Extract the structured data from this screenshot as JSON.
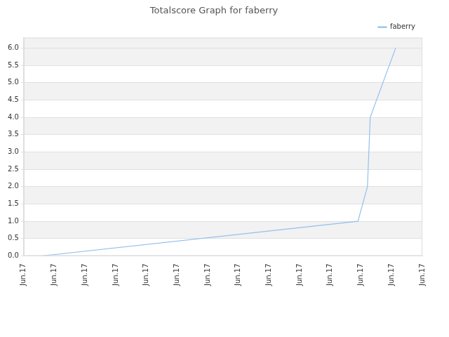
{
  "chart_data": {
    "type": "line",
    "title": "Totalscore Graph for faberry",
    "x": [
      0.59,
      10.9,
      11.21,
      11.3,
      12.13
    ],
    "series": [
      {
        "name": "faberry",
        "color": "#92c0ec",
        "values": [
          0,
          1.0,
          2.0,
          4.0,
          6.0
        ],
        "marker": "none",
        "line_style": "solid"
      }
    ],
    "xlim": [
      0,
      13
    ],
    "xticks": [
      {
        "value": 0,
        "label": "Jun.17"
      },
      {
        "value": 1,
        "label": "Jun.17"
      },
      {
        "value": 2,
        "label": "Jun.17"
      },
      {
        "value": 3,
        "label": "Jun.17"
      },
      {
        "value": 4,
        "label": "Jun.17"
      },
      {
        "value": 5,
        "label": "Jun.17"
      },
      {
        "value": 6,
        "label": "Jun.17"
      },
      {
        "value": 7,
        "label": "Jun.17"
      },
      {
        "value": 8,
        "label": "Jun.17"
      },
      {
        "value": 9,
        "label": "Jun.17"
      },
      {
        "value": 10,
        "label": "Jun.17"
      },
      {
        "value": 11,
        "label": "Jun.17"
      },
      {
        "value": 12,
        "label": "Jun.17"
      },
      {
        "value": 13,
        "label": "Jun.17"
      }
    ],
    "ylim": [
      0,
      6.3
    ],
    "yticks": [
      {
        "value": 0,
        "label": "0.0"
      },
      0.5,
      {
        "value": 1,
        "label": "1.0"
      },
      1.5,
      {
        "value": 2,
        "label": "2.0"
      },
      2.5,
      {
        "value": 3,
        "label": "3.0"
      },
      3.5,
      {
        "value": 4,
        "label": "4.0"
      },
      4.5,
      {
        "value": 5,
        "label": "5.0"
      },
      5.5,
      {
        "value": 6,
        "label": "6.0"
      }
    ],
    "grid": true,
    "legend": "top-right"
  }
}
